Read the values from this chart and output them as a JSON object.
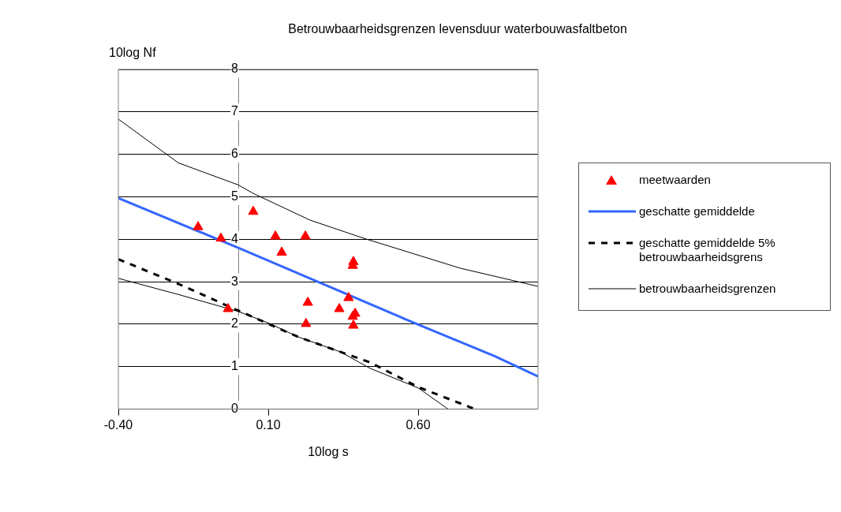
{
  "chart_data": {
    "type": "line",
    "title": "Betrouwbaarheidsgrenzen levensduur waterbouwasfaltbeton",
    "xlabel": "10log s",
    "ylabel": "10log Nf",
    "xlim": [
      -0.4,
      1.0
    ],
    "xticks": [
      {
        "value": -0.4,
        "label": "-0.40"
      },
      {
        "value": 0.1,
        "label": "0.10"
      },
      {
        "value": 0.6,
        "label": "0.60"
      }
    ],
    "ylim": [
      0,
      8
    ],
    "yticks": [
      0,
      1,
      2,
      3,
      4,
      5,
      6,
      7,
      8
    ],
    "grid": "y",
    "legend": "right",
    "series": [
      {
        "name": "meetwaarden",
        "type": "scatter",
        "marker": "triangle",
        "color": "#ff0000",
        "x": [
          -0.134,
          -0.058,
          0.05,
          -0.034,
          0.124,
          0.145,
          0.224,
          0.232,
          0.226,
          0.337,
          0.368,
          0.384,
          0.382,
          0.39,
          0.382,
          0.384
        ],
        "values": [
          4.29,
          4.02,
          4.65,
          2.36,
          4.07,
          3.69,
          4.07,
          2.51,
          2.01,
          2.36,
          2.62,
          3.47,
          3.38,
          2.25,
          2.18,
          1.97
        ]
      },
      {
        "name": "geschatte gemiddelde",
        "marker": "none",
        "line_style": "solid",
        "color": "#3366ff",
        "x": [
          -0.4,
          0.0,
          0.6,
          0.855,
          1.0
        ],
        "values": [
          4.97,
          3.8,
          1.99,
          1.25,
          0.77
        ]
      },
      {
        "name": "geschatte gemiddelde 5% betrouwbaarheidsgrens",
        "marker": "none",
        "line_style": "dashed",
        "color": "#000000",
        "x": [
          -0.4,
          -0.2,
          0.0,
          0.2,
          0.44,
          0.6,
          0.79
        ],
        "values": [
          3.53,
          2.95,
          2.32,
          1.7,
          1.1,
          0.52,
          0.0
        ]
      },
      {
        "name": "betrouwbaarheidsgrenzen",
        "marker": "none",
        "line_style": "solid",
        "color": "#000000",
        "x": [
          -0.4,
          -0.2,
          0.0,
          0.05,
          0.24,
          0.42,
          0.74,
          1.0
        ],
        "values": [
          6.83,
          5.8,
          5.28,
          5.08,
          4.45,
          4.02,
          3.32,
          2.89
        ]
      },
      {
        "marker": "none",
        "line_style": "solid",
        "color": "#000000",
        "x": [
          -0.4,
          -0.2,
          0.0,
          0.1,
          0.2,
          0.34,
          0.44,
          0.6,
          0.7
        ],
        "values": [
          3.08,
          2.7,
          2.3,
          2.03,
          1.7,
          1.35,
          0.96,
          0.5,
          0.0
        ]
      }
    ]
  }
}
